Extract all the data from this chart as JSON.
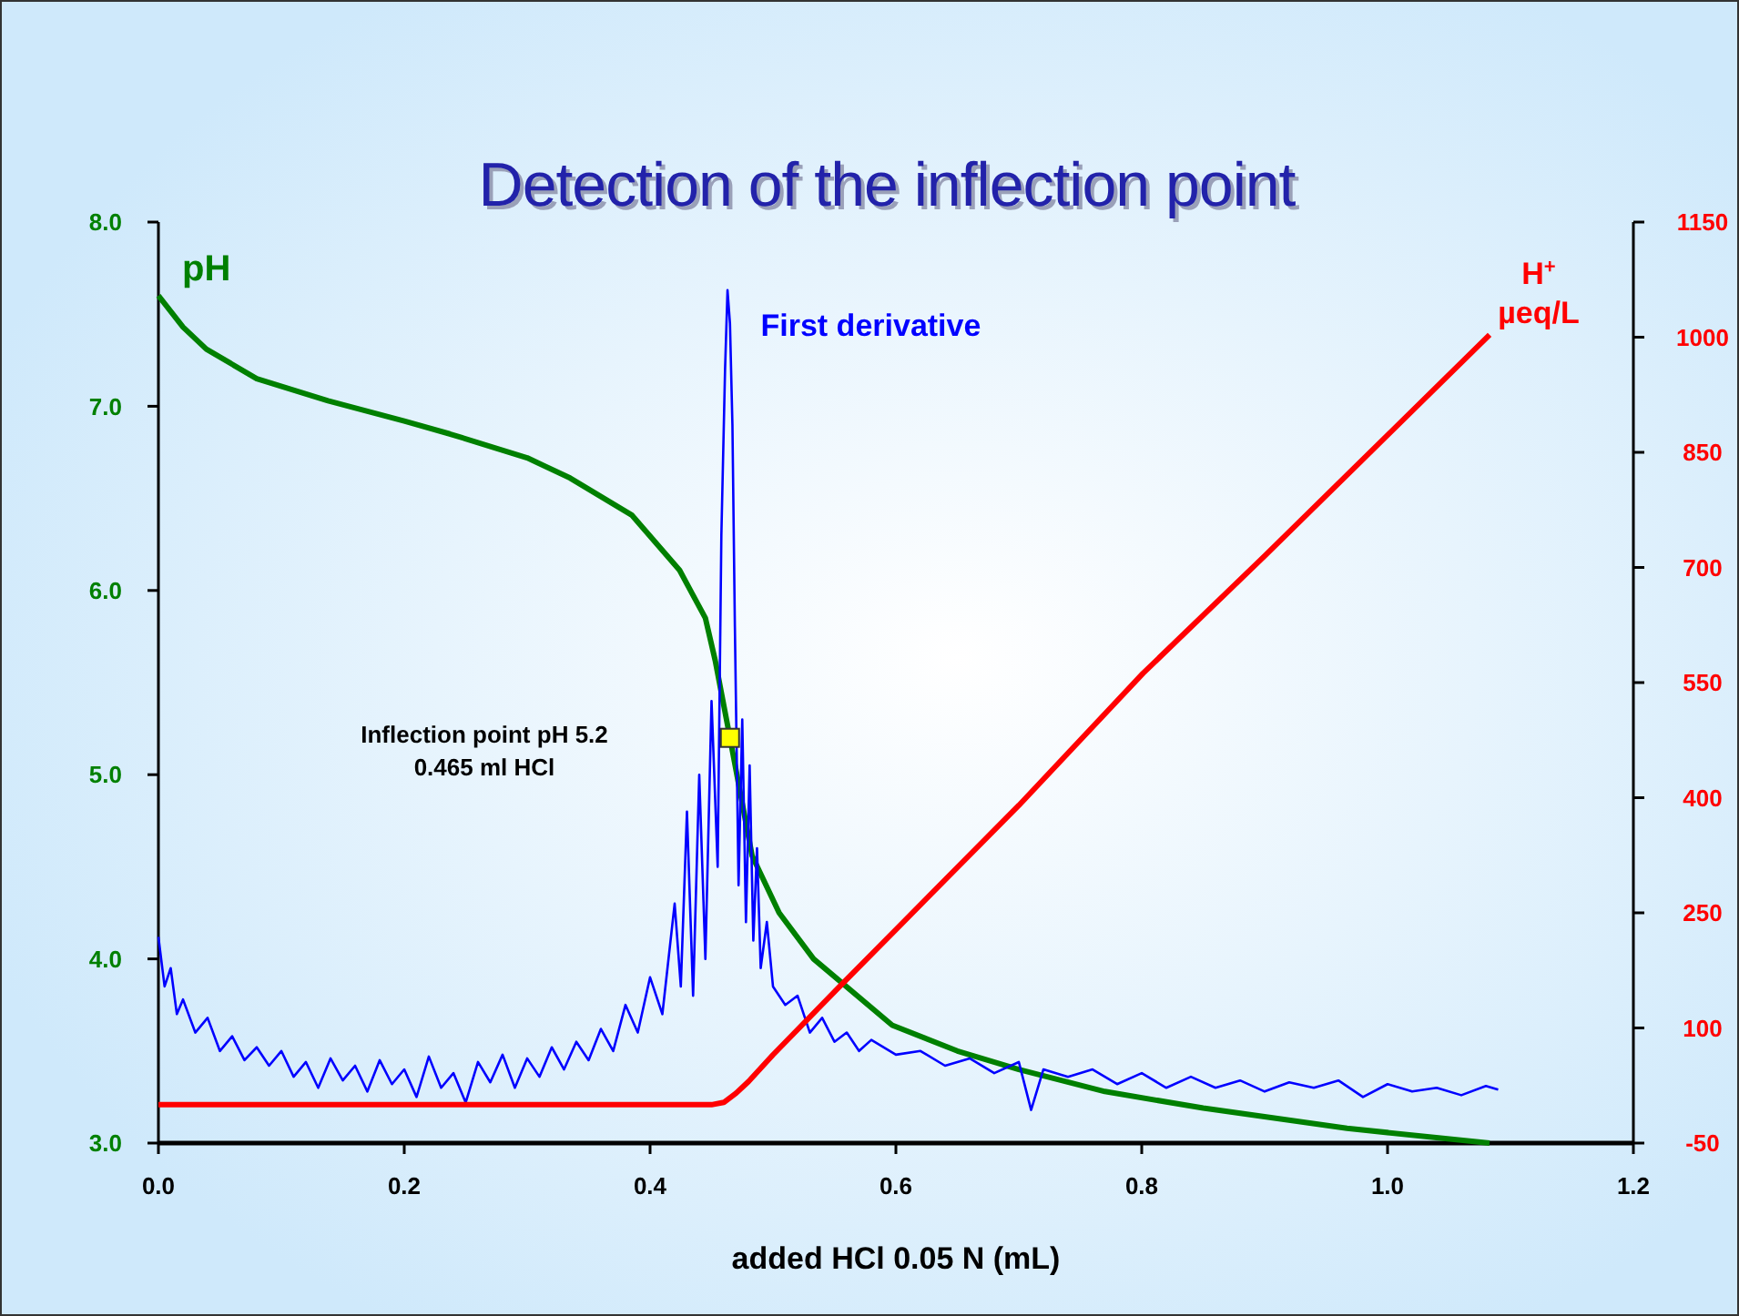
{
  "chart_data": {
    "type": "line",
    "title": "Detection of the inflection point",
    "xlabel": "added HCl 0.05 N (mL)",
    "ylabel": "pH",
    "y2label": "H$^{+}$ µeq/L",
    "xlim": [
      0,
      1.2
    ],
    "xticks": [
      {
        "value": 0,
        "label": "0.0"
      },
      {
        "value": 0.2,
        "label": "0.2"
      },
      {
        "value": 0.4,
        "label": "0.4"
      },
      {
        "value": 0.6,
        "label": "0.6"
      },
      {
        "value": 0.8,
        "label": "0.8"
      },
      {
        "value": 1,
        "label": "1.0"
      },
      {
        "value": 1.2,
        "label": "1.2"
      }
    ],
    "ylim": [
      3,
      8
    ],
    "yticks": [
      {
        "value": 3,
        "label": "3.0"
      },
      {
        "value": 4,
        "label": "4.0"
      },
      {
        "value": 5,
        "label": "5.0"
      },
      {
        "value": 6,
        "label": "6.0"
      },
      {
        "value": 7,
        "label": "7.0"
      },
      {
        "value": 8,
        "label": "8.0"
      }
    ],
    "y2lim": [
      -50,
      1150
    ],
    "y2ticks": [
      -50,
      100,
      250,
      400,
      550,
      700,
      850,
      1000,
      1150
    ],
    "grid": false,
    "legend": false,
    "marker": "none",
    "line_style": "solid",
    "annotations": [
      "Inflection point pH 5.2\n0.465 ml HCl"
    ],
    "series": [
      {
        "color": "#008000",
        "x": [
          0,
          0.02,
          0.039,
          0.08,
          0.138,
          0.2,
          0.237,
          0.3,
          0.335,
          0.385,
          0.424,
          0.445,
          0.453,
          0.465,
          0.483,
          0.505,
          0.533,
          0.597,
          0.65,
          0.7,
          0.77,
          0.85,
          0.967,
          1.083
        ],
        "values": [
          7.6,
          7.43,
          7.31,
          7.15,
          7.03,
          6.92,
          6.85,
          6.72,
          6.61,
          6.41,
          6.11,
          5.85,
          5.62,
          5.2,
          4.56,
          4.25,
          4.0,
          3.64,
          3.5,
          3.4,
          3.28,
          3.19,
          3.08,
          3.0
        ]
      },
      {
        "name": "First derivative",
        "color": "#0000ff",
        "x": [
          0,
          0.005,
          0.01,
          0.015,
          0.02,
          0.03,
          0.04,
          0.05,
          0.06,
          0.07,
          0.08,
          0.09,
          0.1,
          0.11,
          0.12,
          0.13,
          0.14,
          0.15,
          0.16,
          0.17,
          0.18,
          0.19,
          0.2,
          0.21,
          0.22,
          0.23,
          0.24,
          0.25,
          0.26,
          0.27,
          0.28,
          0.29,
          0.3,
          0.31,
          0.32,
          0.33,
          0.34,
          0.35,
          0.36,
          0.37,
          0.38,
          0.39,
          0.4,
          0.41,
          0.42,
          0.425,
          0.43,
          0.435,
          0.44,
          0.445,
          0.45,
          0.455,
          0.458,
          0.461,
          0.463,
          0.465,
          0.467,
          0.469,
          0.472,
          0.475,
          0.478,
          0.481,
          0.484,
          0.487,
          0.49,
          0.495,
          0.5,
          0.51,
          0.52,
          0.53,
          0.54,
          0.55,
          0.56,
          0.57,
          0.58,
          0.6,
          0.62,
          0.64,
          0.66,
          0.68,
          0.7,
          0.71,
          0.72,
          0.74,
          0.76,
          0.78,
          0.8,
          0.82,
          0.84,
          0.86,
          0.88,
          0.9,
          0.92,
          0.94,
          0.96,
          0.98,
          1.0,
          1.02,
          1.04,
          1.06,
          1.08,
          1.09
        ],
        "values": [
          4.12,
          3.85,
          3.95,
          3.7,
          3.78,
          3.6,
          3.68,
          3.5,
          3.58,
          3.45,
          3.52,
          3.42,
          3.5,
          3.36,
          3.44,
          3.3,
          3.46,
          3.34,
          3.42,
          3.28,
          3.45,
          3.32,
          3.4,
          3.25,
          3.47,
          3.3,
          3.38,
          3.22,
          3.44,
          3.33,
          3.48,
          3.3,
          3.46,
          3.36,
          3.52,
          3.4,
          3.55,
          3.45,
          3.62,
          3.5,
          3.75,
          3.6,
          3.9,
          3.7,
          4.3,
          3.85,
          4.8,
          3.8,
          5.0,
          4.0,
          5.4,
          4.5,
          6.3,
          7.2,
          7.63,
          7.45,
          6.9,
          5.8,
          4.4,
          5.3,
          4.2,
          5.05,
          4.1,
          4.6,
          3.95,
          4.2,
          3.85,
          3.75,
          3.8,
          3.6,
          3.68,
          3.55,
          3.6,
          3.5,
          3.56,
          3.48,
          3.5,
          3.42,
          3.46,
          3.38,
          3.44,
          3.18,
          3.4,
          3.36,
          3.4,
          3.32,
          3.38,
          3.3,
          3.36,
          3.3,
          3.34,
          3.28,
          3.33,
          3.3,
          3.34,
          3.25,
          3.32,
          3.28,
          3.3,
          3.26,
          3.31,
          3.29
        ]
      },
      {
        "color": "#ff0000",
        "axis": "y2",
        "x": [
          0,
          0.45,
          0.46,
          0.47,
          0.48,
          0.5,
          0.553,
          0.7,
          0.801,
          0.9,
          1.083
        ],
        "values": [
          0,
          0,
          3,
          15,
          30,
          65,
          152,
          390,
          562,
          715,
          1003
        ]
      },
      {
        "type": "scatter",
        "marker": "square",
        "color": "#ffff00",
        "x": [
          0.465
        ],
        "values": [
          5.2
        ]
      }
    ]
  }
}
